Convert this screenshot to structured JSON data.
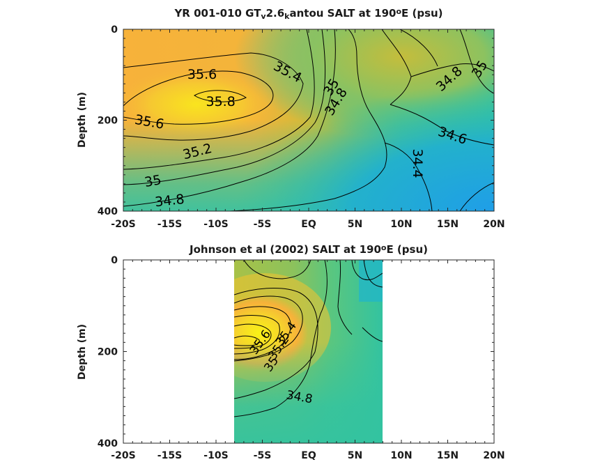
{
  "chart_data": [
    {
      "type": "heatmap",
      "title_parts": [
        "YR 001-010 GT",
        "v",
        "2.6",
        "k",
        "antou SALT at 190",
        "o",
        "E (psu)"
      ],
      "ylabel": "Depth (m)",
      "xticks": [
        "-20S",
        "-15S",
        "-10S",
        "-5S",
        "EQ",
        "5N",
        "10N",
        "15N",
        "20N"
      ],
      "yticks": [
        "0",
        "200",
        "400"
      ],
      "xlim": [
        -20,
        20
      ],
      "ylim": [
        0,
        400
      ],
      "colormap": [
        "#1f9ee8",
        "#21b4c8",
        "#33c3a0",
        "#7dc56a",
        "#c4bd3c",
        "#f7b23a",
        "#f9e41e"
      ],
      "contour_labels": [
        {
          "text": "35.6",
          "lat": -11.5,
          "depth": 100,
          "rot": 0
        },
        {
          "text": "35.8",
          "lat": -9.5,
          "depth": 160,
          "rot": 0
        },
        {
          "text": "35.4",
          "lat": -2.3,
          "depth": 95,
          "rot": 28
        },
        {
          "text": "35.6",
          "lat": -17.2,
          "depth": 205,
          "rot": 10
        },
        {
          "text": "35",
          "lat": 2.5,
          "depth": 128,
          "rot": -58
        },
        {
          "text": "34.8",
          "lat": 3.0,
          "depth": 160,
          "rot": -58
        },
        {
          "text": "35.2",
          "lat": -12.0,
          "depth": 270,
          "rot": -14
        },
        {
          "text": "35",
          "lat": -16.8,
          "depth": 335,
          "rot": -10
        },
        {
          "text": "34.8",
          "lat": -15.0,
          "depth": 378,
          "rot": -6
        },
        {
          "text": "34.8",
          "lat": 15.2,
          "depth": 110,
          "rot": -42
        },
        {
          "text": "35",
          "lat": 18.5,
          "depth": 88,
          "rot": -58
        },
        {
          "text": "34.6",
          "lat": 15.5,
          "depth": 235,
          "rot": 18
        },
        {
          "text": "34.4",
          "lat": 11.7,
          "depth": 295,
          "rot": 90
        }
      ]
    },
    {
      "type": "heatmap",
      "title_parts": [
        "Johnson et al (2002) SALT at 190",
        "o",
        "E (psu)"
      ],
      "ylabel": "Depth (m)",
      "xticks": [
        "-20S",
        "-15S",
        "-10S",
        "-5S",
        "EQ",
        "5N",
        "10N",
        "15N",
        "20N"
      ],
      "yticks": [
        "0",
        "200",
        "400"
      ],
      "xlim": [
        -20,
        20
      ],
      "ylim": [
        0,
        400
      ],
      "data_xrange": [
        -8,
        8
      ],
      "contour_labels": [
        {
          "text": "34.8",
          "lat": -1.0,
          "depth": 300,
          "rot": 10
        },
        {
          "text": "35.4",
          "lat": -2.4,
          "depth": 162,
          "rot": -55
        },
        {
          "text": "35.2",
          "lat": -3.2,
          "depth": 192,
          "rot": -55
        },
        {
          "text": "35",
          "lat": -4.0,
          "depth": 228,
          "rot": -55
        },
        {
          "text": "35.6",
          "lat": -5.2,
          "depth": 180,
          "rot": -55
        }
      ]
    }
  ]
}
